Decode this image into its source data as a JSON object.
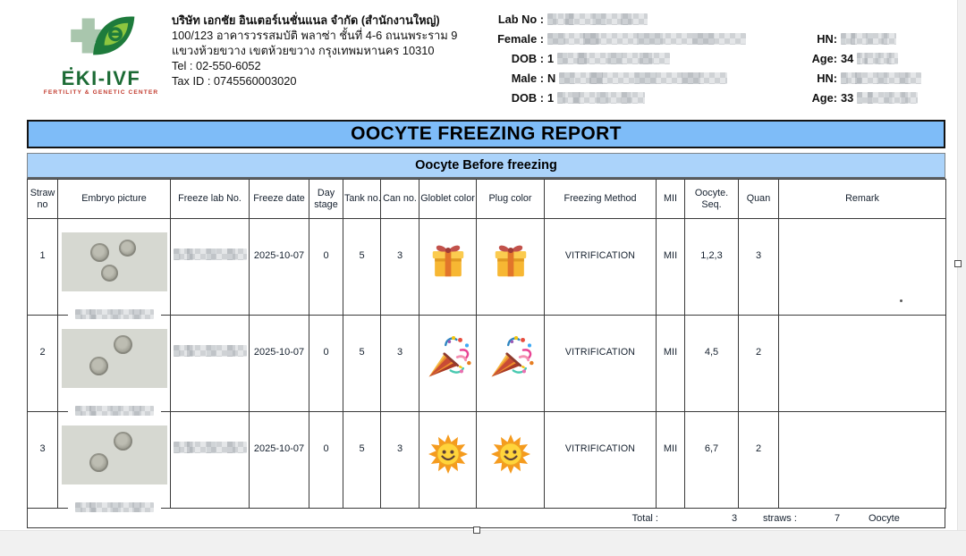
{
  "header": {
    "logo": {
      "brand": "EKI-IVF",
      "tagline": "FERTILITY & GENETIC CENTER"
    },
    "company": {
      "name": "บริษัท เอกชัย อินเตอร์เนชั่นแนล จำกัด (สำนักงานใหญ่)",
      "address1": "100/123 อาคารวรรสมบัติ พลาซ่า  ชั้นที่ 4-6 ถนนพระราม 9",
      "address2": "แขวงห้วยขวาง เขตห้วยขวาง กรุงเทพมหานคร 10310",
      "tel": "Tel : 02-550-6052",
      "tax_id": "Tax ID : 0745560003020"
    },
    "patient": {
      "lab_no_label": "Lab No :",
      "female_label": "Female :",
      "dob_female_label": "DOB :",
      "dob_female_prefix": "1",
      "male_label": "Male :",
      "male_prefix": "N",
      "dob_male_label": "DOB :",
      "dob_male_prefix": "1",
      "hn_female_label": "HN:",
      "age_female_label": "Age:",
      "age_female_value": "34",
      "hn_male_label": "HN:",
      "age_male_label": "Age:",
      "age_male_value": "33"
    }
  },
  "report": {
    "title": "OOCYTE FREEZING REPORT",
    "section": "Oocyte Before freezing"
  },
  "table": {
    "headers": [
      "Straw no",
      "Embryo picture",
      "Freeze lab No.",
      "Freeze date",
      "Day stage",
      "Tank no.",
      "Can no.",
      "Globlet color",
      "Plug color",
      "Freezing Method",
      "MII",
      "Oocyte. Seq.",
      "Quan",
      "Remark"
    ],
    "rows": [
      {
        "straw_no": "1",
        "oocytes_in_picture": 3,
        "freeze_date": "2025-10-07",
        "day_stage": "0",
        "tank_no": "5",
        "can_no": "3",
        "globlet_color_icon": "gift-icon",
        "plug_color_icon": "gift-icon",
        "freezing_method": "VITRIFICATION",
        "mii": "MII",
        "oocyte_seq": "1,2,3",
        "quan": "3",
        "remark": "",
        "remark_mark": true
      },
      {
        "straw_no": "2",
        "oocytes_in_picture": 2,
        "freeze_date": "2025-10-07",
        "day_stage": "0",
        "tank_no": "5",
        "can_no": "3",
        "globlet_color_icon": "party-popper-icon",
        "plug_color_icon": "party-popper-icon",
        "freezing_method": "VITRIFICATION",
        "mii": "MII",
        "oocyte_seq": "4,5",
        "quan": "2",
        "remark": "",
        "remark_mark": false
      },
      {
        "straw_no": "3",
        "oocytes_in_picture": 2,
        "freeze_date": "2025-10-07",
        "day_stage": "0",
        "tank_no": "5",
        "can_no": "3",
        "globlet_color_icon": "sun-icon",
        "plug_color_icon": "sun-icon",
        "freezing_method": "VITRIFICATION",
        "mii": "MII",
        "oocyte_seq": "6,7",
        "quan": "2",
        "remark": "",
        "remark_mark": false
      }
    ],
    "total": {
      "label": "Total :",
      "straws_value": "3",
      "straws_label": "straws :",
      "oocyte_value": "7",
      "oocyte_label": "Oocyte"
    }
  },
  "colors": {
    "title_bar": "#7EBCF8",
    "section_bar": "#ABD3FA",
    "brand_green": "#1C6B35",
    "tagline_red": "#C23B2E"
  }
}
